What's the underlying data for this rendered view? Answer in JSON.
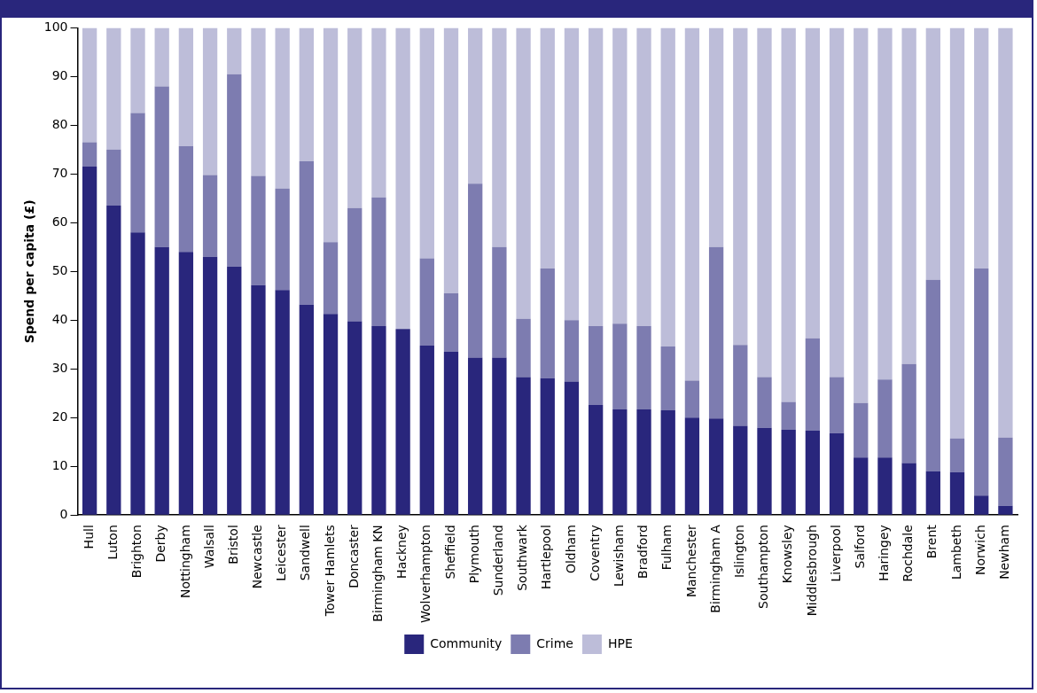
{
  "chart_data": {
    "type": "bar",
    "stacked": true,
    "ylabel": "Spend per capita (£)",
    "categories": [
      "Hull",
      "Luton",
      "Brighton",
      "Derby",
      "Nottingham",
      "Walsall",
      "Bristol",
      "Newcastle",
      "Leicester",
      "Sandwell",
      "Tower Hamlets",
      "Doncaster",
      "Birmingham KN",
      "Hackney",
      "Wolverhampton",
      "Sheffield",
      "Plymouth",
      "Sunderland",
      "Southwark",
      "Hartlepool",
      "Oldham",
      "Coventry",
      "Lewisham",
      "Bradford",
      "Fulham",
      "Manchester",
      "Birmingham A",
      "Islington",
      "Southampton",
      "Knowsley",
      "Middlesbrough",
      "Liverpool",
      "Salford",
      "Haringey",
      "Rochdale",
      "Brent",
      "Lambeth",
      "Norwich",
      "Newham"
    ],
    "series": [
      {
        "name": "Community",
        "color": "#29267c",
        "values": [
          71.5,
          63.5,
          58,
          55,
          54,
          53,
          51,
          47.2,
          46.2,
          43.2,
          41.3,
          39.8,
          38.8,
          38.2,
          34.8,
          33.5,
          32.3,
          32.3,
          28.3,
          28.1,
          27.4,
          22.6,
          21.7,
          21.7,
          21.5,
          20,
          19.8,
          18.3,
          17.9,
          17.5,
          17.3,
          16.8,
          11.8,
          11.8,
          10.7,
          9,
          8.8,
          4,
          1.9
        ]
      },
      {
        "name": "Crime",
        "color": "#7d7cb0",
        "values": [
          5,
          11.5,
          24.5,
          33,
          21.7,
          16.8,
          39.5,
          22.4,
          20.8,
          29.4,
          14.7,
          23.2,
          26.4,
          0,
          17.9,
          12,
          35.7,
          22.7,
          12,
          22.5,
          12.6,
          16.2,
          17.6,
          17.1,
          13.1,
          7.6,
          35.2,
          16.6,
          10.4,
          5.7,
          19,
          11.5,
          11.2,
          16,
          20.3,
          39.3,
          6.9,
          46.6,
          14
        ]
      },
      {
        "name": "HPE",
        "color": "#bdbdd9",
        "values": [
          23.5,
          25,
          17.5,
          12,
          24.3,
          30.2,
          9.5,
          30.4,
          33,
          27.4,
          44,
          37,
          34.8,
          61.8,
          47.3,
          54.5,
          32,
          45,
          59.7,
          49.4,
          60,
          61.2,
          60.7,
          61.2,
          65.4,
          72.4,
          45,
          65.1,
          71.7,
          76.8,
          63.7,
          71.7,
          77,
          72.2,
          69,
          51.7,
          84.3,
          49.4,
          84.1
        ]
      }
    ],
    "ylim": [
      0,
      100
    ],
    "yticks": [
      0,
      10,
      20,
      30,
      40,
      50,
      60,
      70,
      80,
      90,
      100
    ],
    "grid": false,
    "legend": "bottom"
  }
}
